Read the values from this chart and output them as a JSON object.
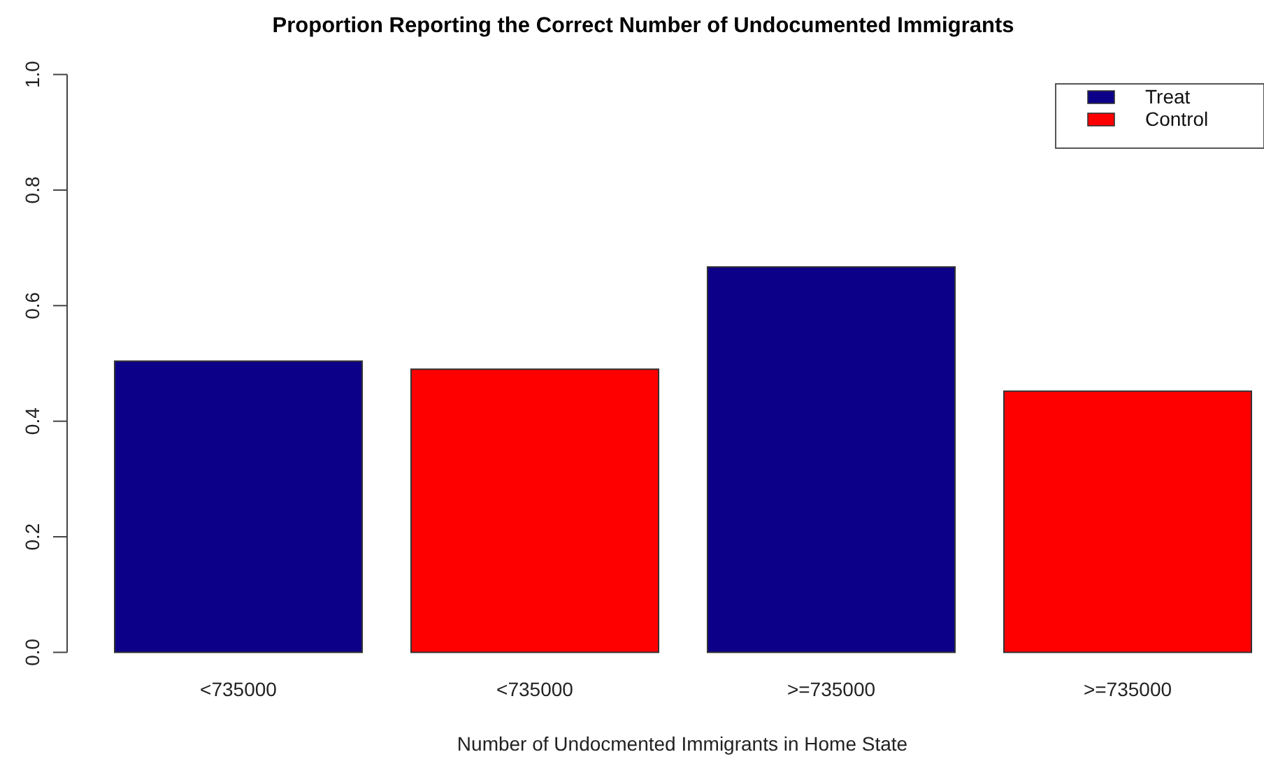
{
  "chart_data": {
    "type": "bar",
    "title": "Proportion Reporting the Correct Number of Undocumented Immigrants",
    "xlabel": "Number of Undocmented Immigrants in Home State",
    "categories": [
      "<735000",
      "<735000",
      ">=735000",
      ">=735000"
    ],
    "series": [
      {
        "name": "Treat",
        "color": "#0d0088",
        "values": [
          0.504,
          null,
          0.667,
          null
        ]
      },
      {
        "name": "Control",
        "color": "#ff0000",
        "values": [
          null,
          0.49,
          null,
          0.452
        ]
      }
    ],
    "ylim": [
      0,
      1
    ],
    "yticks": [
      {
        "value": 0,
        "label": "0.0"
      },
      {
        "value": 0.2,
        "label": "0.2"
      },
      {
        "value": 0.4,
        "label": "0.4"
      },
      {
        "value": 0.6,
        "label": "0.6"
      },
      {
        "value": 0.8,
        "label": "0.8"
      },
      {
        "value": 1,
        "label": "1.0"
      }
    ],
    "legend": "top right"
  }
}
